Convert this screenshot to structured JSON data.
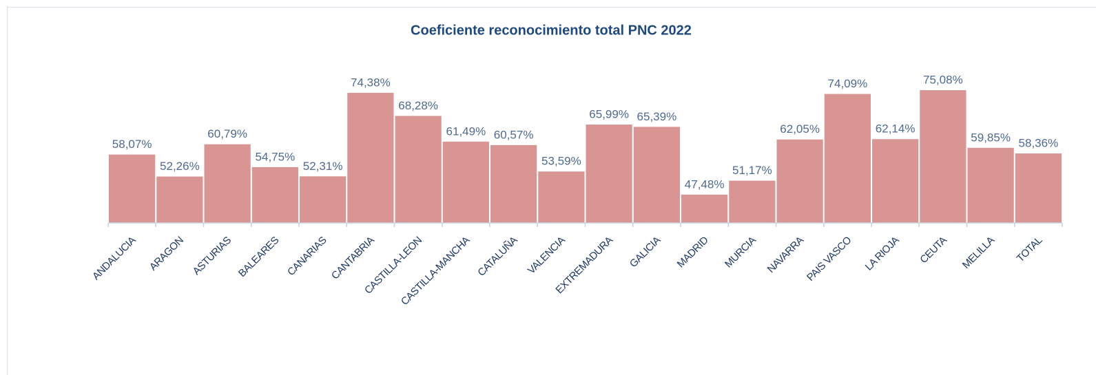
{
  "chart_data": {
    "type": "bar",
    "title": "Coeficiente reconocimiento total PNC 2022",
    "categories": [
      "ANDALUCIA",
      "ARAGON",
      "ASTURIAS",
      "BALEARES",
      "CANARIAS",
      "CANTABRIA",
      "CASTILLA-LEON",
      "CASTILLA-MANCHA",
      "CATALUÑA",
      "VALENCIA",
      "EXTREMADURA",
      "GALICIA",
      "MADRID",
      "MURCIA",
      "NAVARRA",
      "PAIS VASCO",
      "LA RIOJA",
      "CEUTA",
      "MELILLA",
      "TOTAL"
    ],
    "values": [
      58.07,
      52.26,
      60.79,
      54.75,
      52.31,
      74.38,
      68.28,
      61.49,
      60.57,
      53.59,
      65.99,
      65.39,
      47.48,
      51.17,
      62.05,
      74.09,
      62.14,
      75.08,
      59.85,
      58.36
    ],
    "value_labels": [
      "58,07%",
      "52,26%",
      "60,79%",
      "54,75%",
      "52,31%",
      "74,38%",
      "68,28%",
      "61,49%",
      "60,57%",
      "53,59%",
      "65,99%",
      "65,39%",
      "47,48%",
      "51,17%",
      "62,05%",
      "74,09%",
      "62,14%",
      "75,08%",
      "59,85%",
      "58,36%"
    ],
    "color": "#d99594",
    "ylim": [
      40,
      80
    ]
  }
}
